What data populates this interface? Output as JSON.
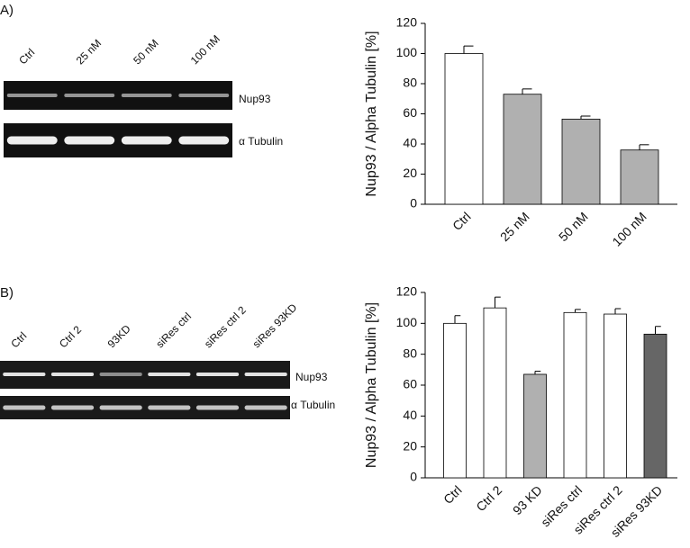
{
  "panels": [
    {
      "label": "A)",
      "lanes": [
        "Ctrl",
        "25 nM",
        "50 nM",
        "100 nM"
      ],
      "bands": [
        "Nup93",
        "α Tubulin"
      ]
    },
    {
      "label": "B)",
      "lanes": [
        "Ctrl",
        "Ctrl 2",
        "93KD",
        "siRes ctrl",
        "siRes ctrl 2",
        "siRes 93KD"
      ],
      "bands": [
        "Nup93",
        "α Tubulin"
      ]
    }
  ],
  "chart_data": [
    {
      "type": "bar",
      "y_label": "Nup93 / Alpha Tubulin [%]",
      "categories": [
        "Ctrl",
        "25 nM",
        "50 nM",
        "100 nM"
      ],
      "values": [
        100,
        73,
        56.5,
        36
      ],
      "errors": [
        5,
        3.5,
        2,
        3.5
      ],
      "colors": [
        "#ffffff",
        "#b0b0b0",
        "#b0b0b0",
        "#b0b0b0"
      ],
      "ylim": [
        0,
        120
      ],
      "yticks": [
        0,
        20,
        40,
        60,
        80,
        100,
        120
      ]
    },
    {
      "type": "bar",
      "y_label": "Nup93 / Alpha Tubulin [%]",
      "categories": [
        "Ctrl",
        "Ctrl 2",
        "93 KD",
        "siRes ctrl",
        "siRes ctrl 2",
        "siRes 93KD"
      ],
      "values": [
        100,
        110,
        67,
        107,
        106,
        93
      ],
      "errors": [
        5,
        7,
        2,
        2,
        3.5,
        5
      ],
      "colors": [
        "#ffffff",
        "#ffffff",
        "#b0b0b0",
        "#ffffff",
        "#ffffff",
        "#666666"
      ],
      "ylim": [
        0,
        120
      ],
      "yticks": [
        0,
        20,
        40,
        60,
        80,
        100,
        120
      ]
    }
  ]
}
